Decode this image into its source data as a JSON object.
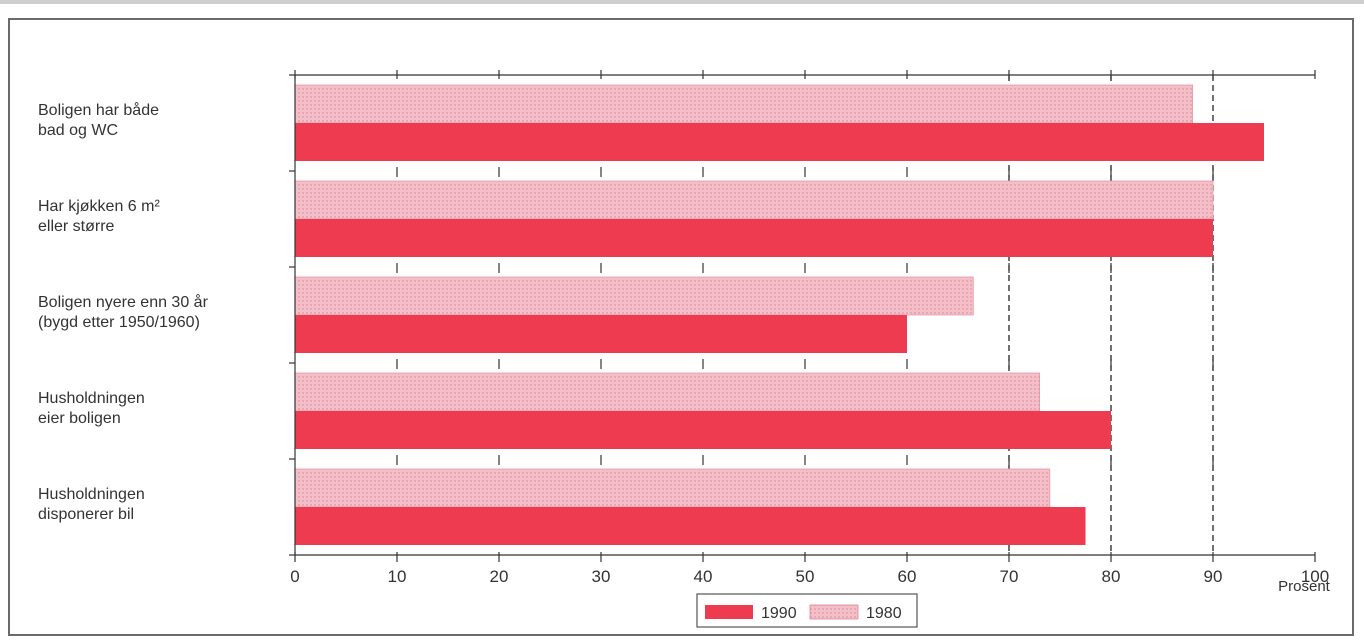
{
  "chart_data": {
    "type": "bar",
    "orientation": "horizontal",
    "categories": [
      [
        "Boligen har både",
        "bad og WC"
      ],
      [
        "Har kjøkken 6 m²",
        "eller større"
      ],
      [
        "Boligen nyere enn 30 år",
        "(bygd etter 1950/1960)"
      ],
      [
        "Husholdningen",
        "eier boligen"
      ],
      [
        "Husholdningen",
        "disponerer bil"
      ]
    ],
    "series": [
      {
        "name": "1980",
        "values": [
          88,
          90,
          66.5,
          73,
          74
        ],
        "color": "#f2b8c2",
        "pattern": "dotted"
      },
      {
        "name": "1990",
        "values": [
          95,
          90,
          60,
          80,
          77.5
        ],
        "color": "#ee3b4f",
        "pattern": "solid"
      }
    ],
    "x_ticks": [
      "0",
      "10",
      "20",
      "30",
      "40",
      "50",
      "60",
      "70",
      "80",
      "90",
      "100"
    ],
    "xlim": [
      0,
      100
    ],
    "xlabel": "Prosent",
    "legend": {
      "placement": "bottom-center",
      "entries": [
        {
          "label": "1990",
          "series": "1990"
        },
        {
          "label": "1980",
          "series": "1980"
        }
      ]
    }
  }
}
